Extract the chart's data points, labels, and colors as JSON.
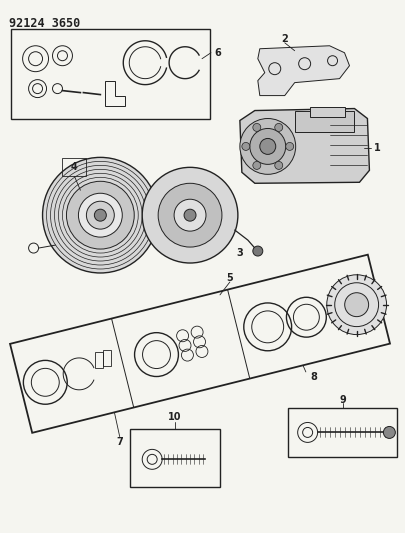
{
  "title": "92124 3650",
  "bg_color": "#f5f5f0",
  "line_color": "#222222",
  "fig_width": 4.06,
  "fig_height": 5.33,
  "dpi": 100
}
